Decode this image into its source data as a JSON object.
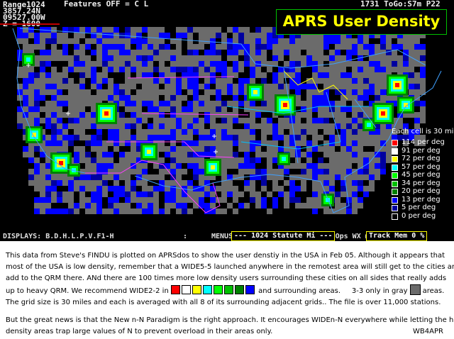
{
  "header": {
    "range_label": "Range1024",
    "latitude": "3857.24N",
    "longitude": "09527.00W",
    "zoom_label": "Z = 1600",
    "features_label": "Features OFF = C L",
    "counter_label": "1731 ToGo:S7m P22"
  },
  "title": "APRS User Density",
  "legend": {
    "caption": "Each cell is 30 mi",
    "items": [
      {
        "label": "114 per deg",
        "color": "#ff0000"
      },
      {
        "label": "91 per deg",
        "color": "#ffffff"
      },
      {
        "label": "72 per deg",
        "color": "#ffff00"
      },
      {
        "label": "57 per deg",
        "color": "#00ffff"
      },
      {
        "label": "45 per deg",
        "color": "#00ff00"
      },
      {
        "label": "34 per deg",
        "color": "#00c000"
      },
      {
        "label": "20 per deg",
        "color": "#008000"
      },
      {
        "label": "13 per deg",
        "color": "#0000ff"
      },
      {
        "label": "5 per deg",
        "color": "#0000a0"
      },
      {
        "label": "0 per deg",
        "color": "#000000"
      }
    ]
  },
  "status_bar": {
    "displays": "DISPLAYS: B.D.H.L.P.V.F1-H",
    "separator": ":",
    "menus": "MENUS: Cntrls File Input Map Ops WX @Setup",
    "scale": "--- 1024 Statute Mi ---",
    "track": "Track Mem 0 %"
  },
  "colors": {
    "gray_cell": "#6b6b6b",
    "state_lines": "#ff40ff",
    "coast_lines": "#40a0ff",
    "low_density": "#0000ff"
  },
  "caption": {
    "p1_line1": "This data from Steve's FINDU is plotted on APRSdos to show the user denstiy in the USA in Feb 05.   Although it appears that",
    "p1_line2": "most of the USA is low density, remember that a WIDE5-5 launched anywhere in the remotest area will still get to the cities and",
    "p1_line3": "add to the QRM there.  ANd there are 100 times more low density users surrounding these cities on  all sides that  really adds",
    "p1_line4a": "up to heavy QRM.  We recommend  WIDE2-2  in",
    "p1_line4b": "and surrounding areas.",
    "p1_line4c": "3-3 only  in gray",
    "p1_line4d": "areas.",
    "recommend_colors": [
      "#ff0000",
      "#ffffff",
      "#ffff00",
      "#00ffff",
      "#00ff00",
      "#00c000",
      "#008000",
      "#0000ff"
    ],
    "p2": "The grid size is 30 miles and each is averaged with all 8 of its surrounding adjacent grids..  The file is over 11,000 stations.",
    "p3_line1": "But the great news is that the New n-N Paradigm is the right approach.  It encourages WIDEn-N everywhere while letting the high",
    "p3_line2": "density areas trap large values of N to prevent overload in their areas only.",
    "signature": "WB4APR"
  }
}
